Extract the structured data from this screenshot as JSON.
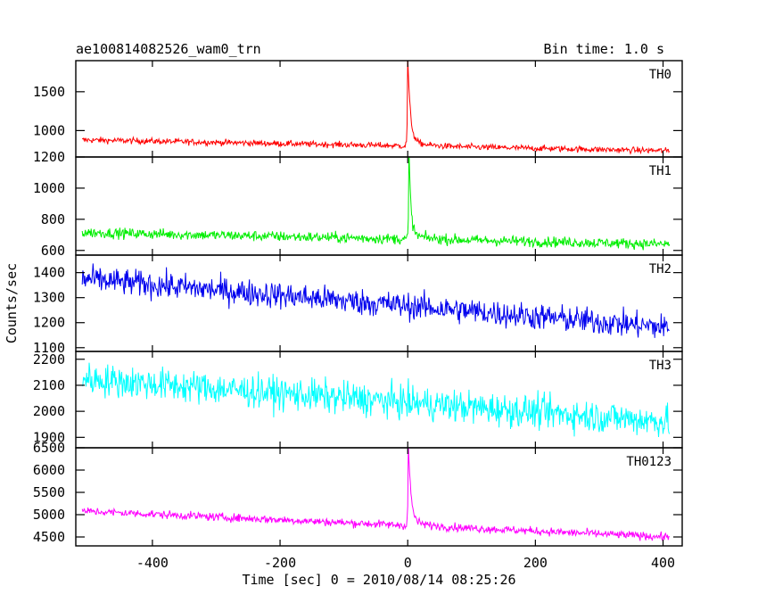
{
  "header": {
    "title": "ae100814082526_wam0_trn",
    "bin_time": "Bin time: 1.0 s"
  },
  "chart_data": {
    "type": "line",
    "xlabel": "Time [sec] 0 = 2010/08/14 08:25:26",
    "ylabel": "Counts/sec",
    "xlim": [
      -520,
      430
    ],
    "x_data_range": [
      -510,
      410
    ],
    "x_ticks": [
      -400,
      -200,
      0,
      200,
      400
    ],
    "bin_time_s": 1.0,
    "panels": [
      {
        "name": "TH0",
        "color": "#ff0000",
        "ylim": [
          660,
          1900
        ],
        "y_ticks": [
          1000,
          1500
        ],
        "baseline_start": 880,
        "baseline_end": 740,
        "noise": 28,
        "burst": {
          "t": 0,
          "peak": 1900,
          "decay_s": 4
        }
      },
      {
        "name": "TH1",
        "color": "#00ee00",
        "ylim": [
          570,
          1200
        ],
        "y_ticks": [
          600,
          800,
          1000,
          1200
        ],
        "baseline_start": 715,
        "baseline_end": 640,
        "noise": 24,
        "burst": {
          "t": 2,
          "peak": 1200,
          "decay_s": 3
        }
      },
      {
        "name": "TH2",
        "color": "#0000ee",
        "ylim": [
          1085,
          1470
        ],
        "y_ticks": [
          1100,
          1200,
          1300,
          1400
        ],
        "baseline_start": 1375,
        "baseline_end": 1180,
        "noise": 38,
        "burst": null
      },
      {
        "name": "TH3",
        "color": "#00ffff",
        "ylim": [
          1860,
          2230
        ],
        "y_ticks": [
          1900,
          2000,
          2100,
          2200
        ],
        "baseline_start": 2125,
        "baseline_end": 1960,
        "noise": 45,
        "burst": null
      },
      {
        "name": "TH0123",
        "color": "#ff00ff",
        "ylim": [
          4300,
          6500
        ],
        "y_ticks": [
          4500,
          5000,
          5500,
          6000,
          6500
        ],
        "baseline_start": 5080,
        "baseline_end": 4500,
        "noise": 65,
        "burst": {
          "t": 1,
          "peak": 6500,
          "decay_s": 4
        }
      }
    ]
  }
}
